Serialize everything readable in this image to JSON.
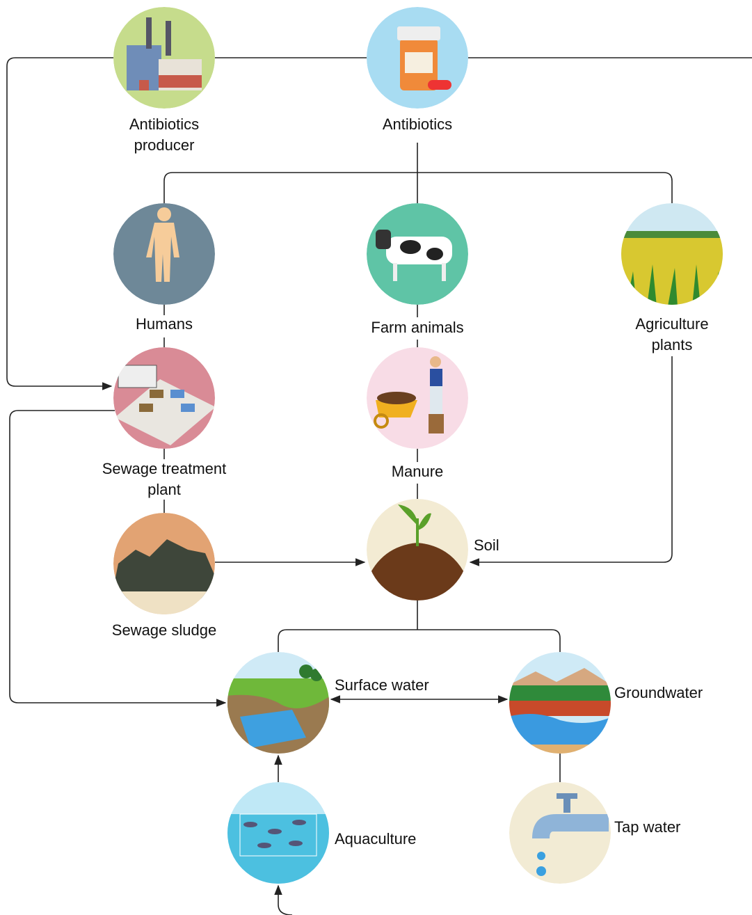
{
  "nodes": [
    {
      "label": [
        "Antibiotics",
        "producer"
      ]
    },
    {
      "label": [
        "Antibiotics"
      ]
    },
    {
      "label": [
        "Humans"
      ]
    },
    {
      "label": [
        "Farm animals"
      ]
    },
    {
      "label": [
        "Agriculture",
        "plants"
      ]
    },
    {
      "label": [
        "Sewage treatment",
        "plant"
      ]
    },
    {
      "label": [
        "Manure"
      ]
    },
    {
      "label": [
        "Sewage sludge"
      ]
    },
    {
      "label": [
        "Soil"
      ]
    },
    {
      "label": [
        "Surface water"
      ]
    },
    {
      "label": [
        "Groundwater"
      ]
    },
    {
      "label": [
        "Aquaculture"
      ]
    },
    {
      "label": [
        "Tap water"
      ]
    }
  ]
}
